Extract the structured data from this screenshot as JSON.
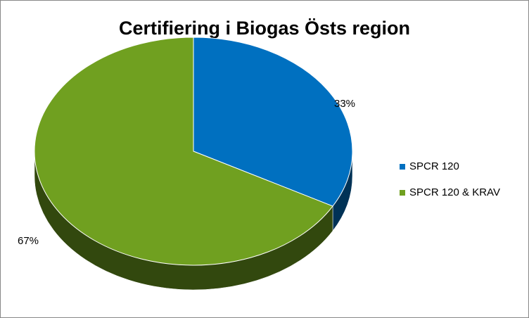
{
  "chart_data": {
    "type": "pie",
    "title": "Certifiering i Biogas Östs region",
    "categories": [
      "SPCR 120",
      "SPCR 120 & KRAV"
    ],
    "values": [
      33,
      67
    ],
    "value_labels": [
      "33%",
      "67%"
    ],
    "colors": [
      "#0070c0",
      "#70a020"
    ]
  }
}
